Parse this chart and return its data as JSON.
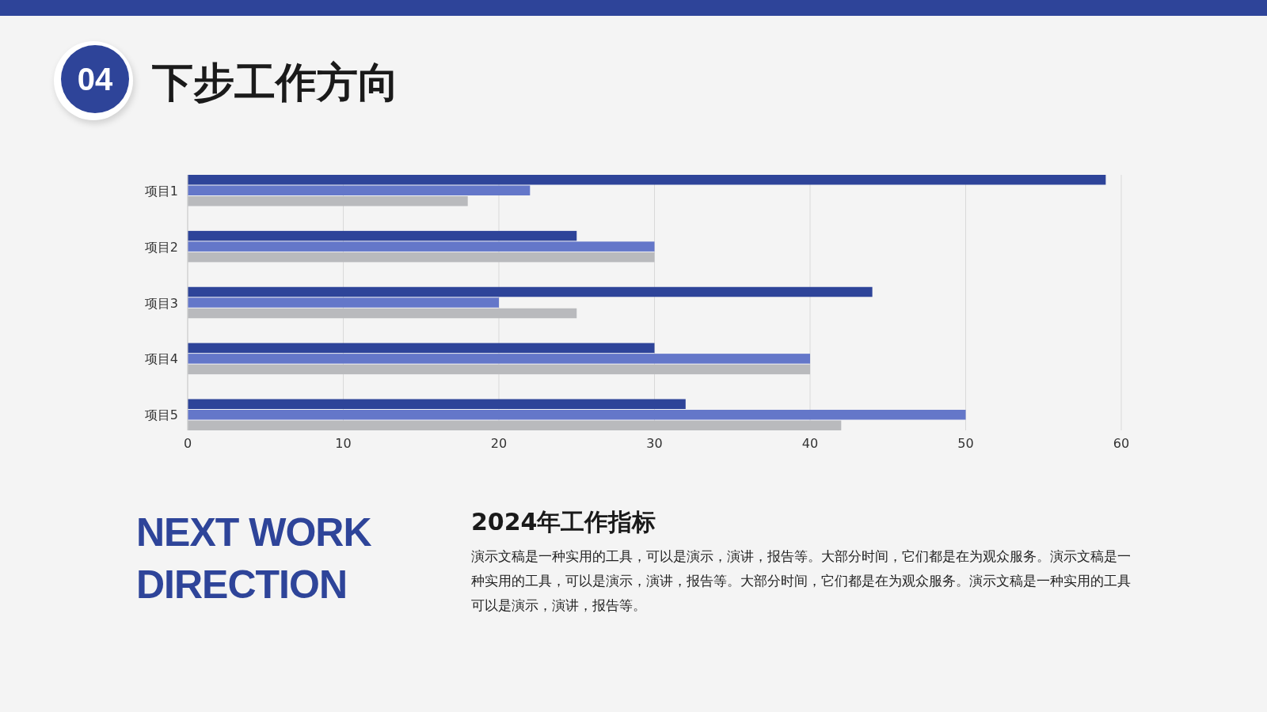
{
  "chart_data": {
    "type": "bar",
    "orientation": "horizontal",
    "title": "下步工作方向",
    "annotations": [
      "04",
      "NEXT WORK DIRECTION",
      "2024年工作指标",
      "演示文稿是一种实用的工具，可以是演示，演讲，报告等。大部分时间，它们都是在为观众服务。演示文稿是一种实用的工具，可以是演示，演讲，报告等。大部分时间，它们都是在为观众服务。演示文稿是一种实用的工具可以是演示，演讲，报告等。"
    ],
    "categories": [
      "项目1",
      "项目2",
      "项目3",
      "项目4",
      "项目5"
    ],
    "series": [
      {
        "color": "#2e4499",
        "values": [
          59,
          25,
          44,
          30,
          32
        ]
      },
      {
        "color": "#6477c9",
        "values": [
          22,
          30,
          20,
          40,
          50
        ]
      },
      {
        "color": "#b9babd",
        "values": [
          18,
          30,
          25,
          40,
          42
        ]
      }
    ],
    "xlim": [
      0,
      60
    ],
    "xticks": [
      0,
      10,
      20,
      30,
      40,
      50,
      60
    ],
    "grid": "x"
  }
}
